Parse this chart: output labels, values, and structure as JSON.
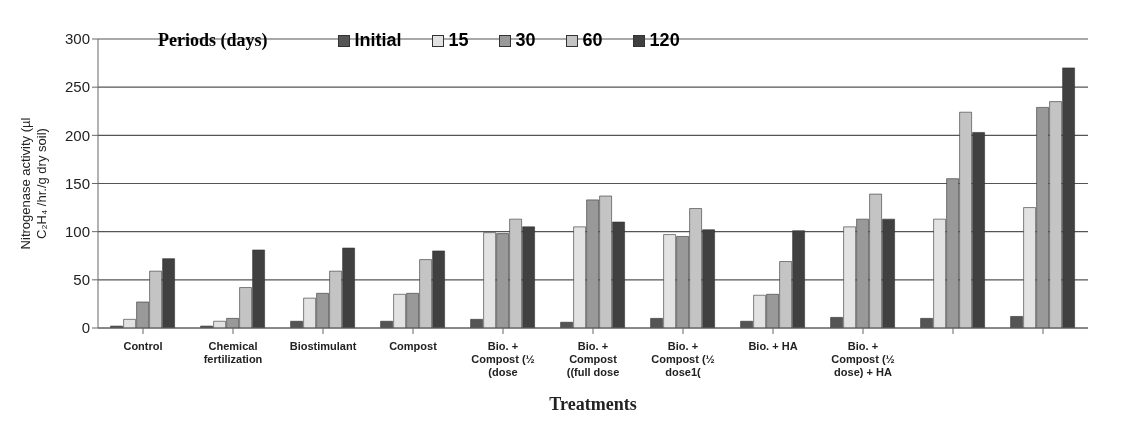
{
  "chart_data": {
    "type": "bar",
    "xlabel": "Treatments",
    "ylabel": "Nitrogenase activity (µl C₂H₄ /hr./g dry  soil)",
    "legend_title": "Periods (days)",
    "categories": [
      "Control",
      "Chemical fertilization",
      "Biostimulant",
      "Compost",
      "Bio. + Compost (½ (dose",
      "Bio. + Compost ((full dose",
      "Bio. + Compost (½ dose1(",
      "Bio. + HA",
      "Bio. + Compost (½ dose) + HA",
      null,
      null
    ],
    "series": [
      {
        "name": "Initial",
        "color": "#555555",
        "values": [
          2,
          2,
          7,
          7,
          9,
          6,
          10,
          7,
          11,
          10,
          12
        ]
      },
      {
        "name": "15",
        "color": "#e2e2e2",
        "values": [
          9,
          7,
          31,
          35,
          99,
          105,
          97,
          34,
          105,
          113,
          125
        ]
      },
      {
        "name": "30",
        "color": "#999999",
        "values": [
          27,
          10,
          36,
          36,
          98,
          133,
          95,
          35,
          113,
          155,
          229
        ]
      },
      {
        "name": "60",
        "color": "#c4c4c4",
        "values": [
          59,
          42,
          59,
          71,
          113,
          137,
          124,
          69,
          139,
          224,
          235
        ]
      },
      {
        "name": "120",
        "color": "#404040",
        "values": [
          72,
          81,
          83,
          80,
          105,
          110,
          102,
          101,
          113,
          203,
          270
        ]
      }
    ],
    "ylim": [
      0,
      300
    ],
    "yticks": [
      0,
      50,
      100,
      150,
      200,
      250,
      300
    ],
    "grid": "y",
    "legend": "top"
  }
}
